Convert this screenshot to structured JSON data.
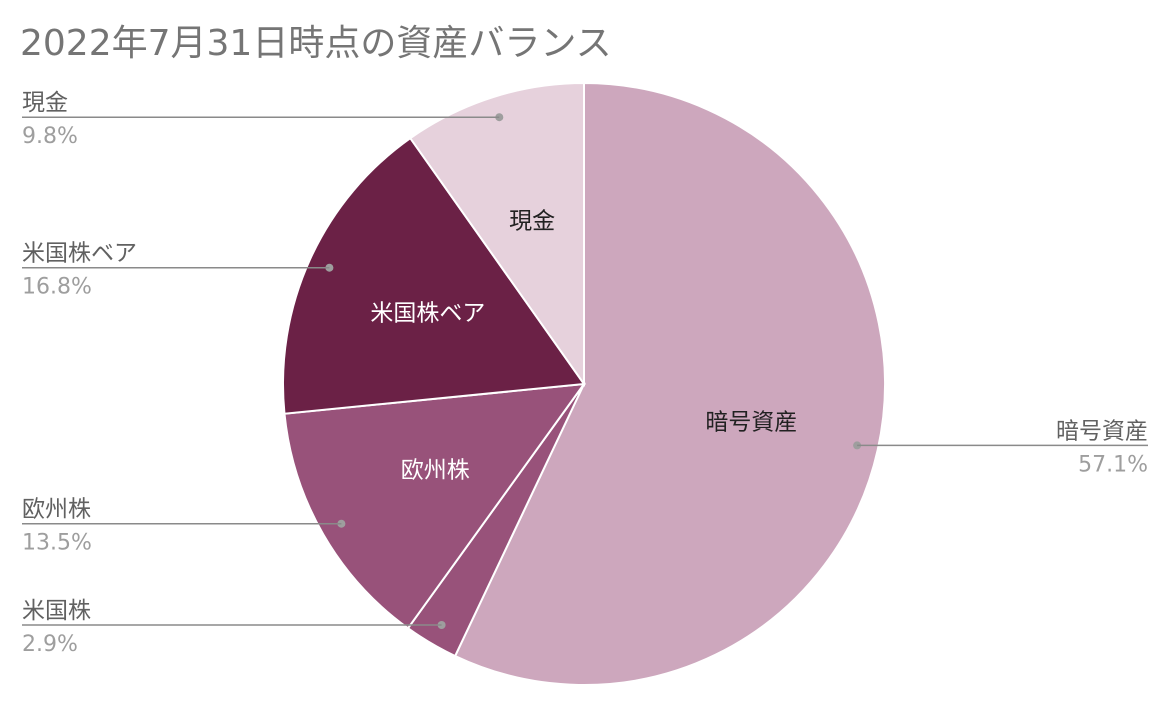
{
  "chart_data": {
    "type": "pie",
    "title": "2022年7月31日時点の資産バランス",
    "start_angle": "top",
    "direction": "clockwise",
    "slices": [
      {
        "label": "暗号資産",
        "value": 57.1,
        "percent_label": "57.1%",
        "color": "#cda7bd",
        "inner_label_color": "#212121",
        "outer_side": "right"
      },
      {
        "label": "米国株",
        "value": 2.9,
        "percent_label": "2.9%",
        "color": "#98527a",
        "inner_label_color": "",
        "outer_side": "left"
      },
      {
        "label": "欧州株",
        "value": 13.5,
        "percent_label": "13.5%",
        "color": "#98527a",
        "inner_label_color": "#ffffff",
        "outer_side": "left"
      },
      {
        "label": "米国株ベア",
        "value": 16.8,
        "percent_label": "16.8%",
        "color": "#6b2146",
        "inner_label_color": "#ffffff",
        "outer_side": "left"
      },
      {
        "label": "現金",
        "value": 9.8,
        "percent_label": "9.8%",
        "color": "#e6d1dc",
        "inner_label_color": "#212121",
        "outer_side": "left"
      }
    ]
  }
}
